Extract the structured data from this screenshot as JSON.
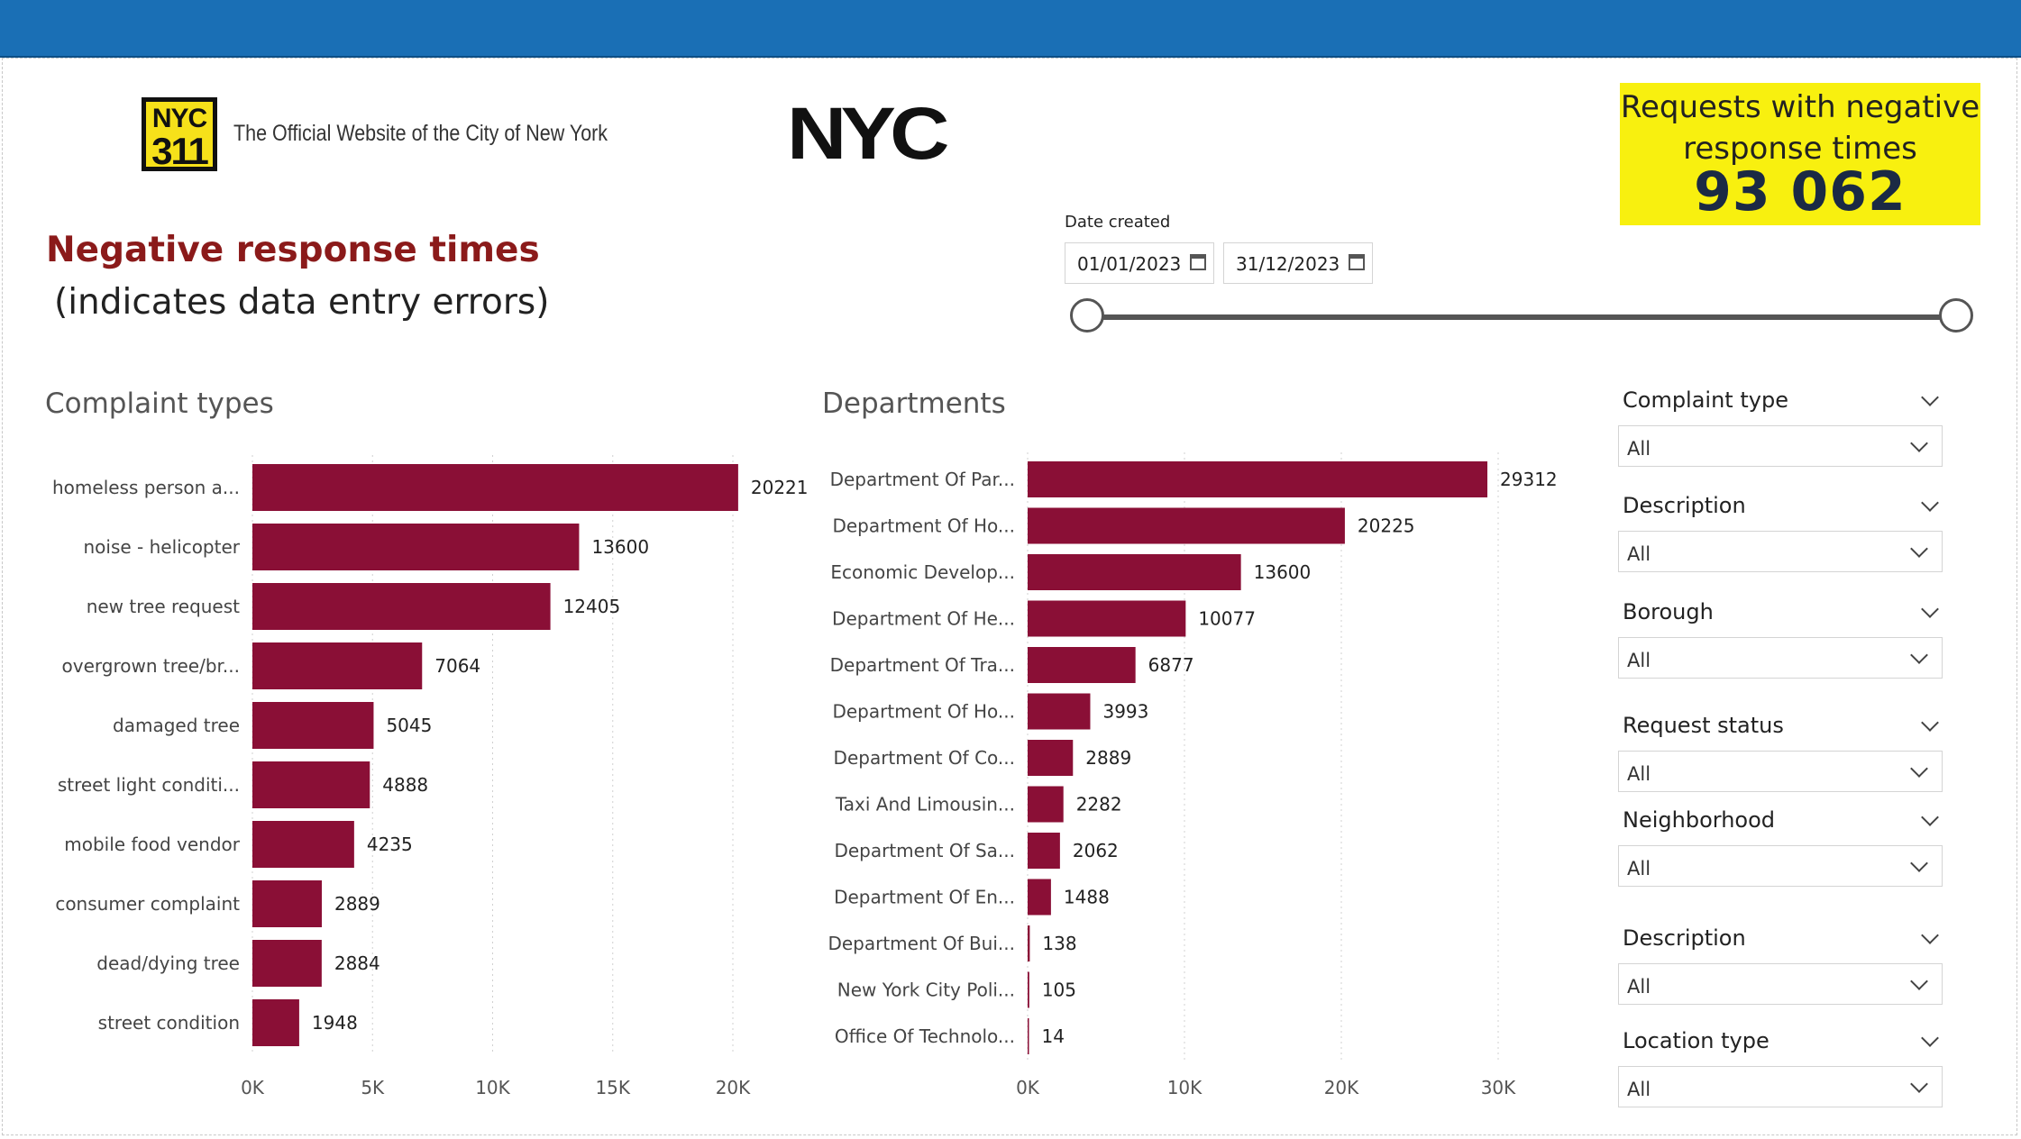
{
  "header": {
    "logo311_top": "NYC",
    "logo311_bottom": "311",
    "site_text": "The Official Website of the City of New York",
    "nyc_logo": "NYC"
  },
  "kpi": {
    "label": "Requests with negative response times",
    "value": "93 062",
    "background": "#f8f00f"
  },
  "title": "Negative response times",
  "subtitle": "(indicates data entry errors)",
  "date_filter": {
    "label": "Date created",
    "start": "01/01/2023",
    "end": "31/12/2023"
  },
  "sections": {
    "complaints": "Complaint types",
    "departments": "Departments"
  },
  "filters": [
    {
      "title": "Complaint type",
      "value": "All"
    },
    {
      "title": "Description",
      "value": "All"
    },
    {
      "title": "Borough",
      "value": "All"
    },
    {
      "title": "Request status",
      "value": "All"
    },
    {
      "title": "Neighborhood",
      "value": "All"
    },
    {
      "title": "Description",
      "value": "All"
    },
    {
      "title": "Location type",
      "value": "All"
    }
  ],
  "chart_data": [
    {
      "type": "bar",
      "orientation": "horizontal",
      "title": "Complaint types",
      "color": "#8a0f36",
      "categories": [
        "homeless person a...",
        "noise - helicopter",
        "new tree request",
        "overgrown tree/br...",
        "damaged tree",
        "street light conditi...",
        "mobile food vendor",
        "consumer complaint",
        "dead/dying tree",
        "street condition"
      ],
      "values": [
        20221,
        13600,
        12405,
        7064,
        5045,
        4888,
        4235,
        2889,
        2884,
        1948
      ],
      "xlim": [
        0,
        20000
      ],
      "xticks": [
        "0K",
        "5K",
        "10K",
        "15K",
        "20K"
      ],
      "xtick_values": [
        0,
        5000,
        10000,
        15000,
        20000
      ],
      "grid": true
    },
    {
      "type": "bar",
      "orientation": "horizontal",
      "title": "Departments",
      "color": "#8a0f36",
      "categories": [
        "Department Of Par...",
        "Department Of Ho...",
        "Economic Develop...",
        "Department Of He...",
        "Department Of Tra...",
        "Department Of Ho...",
        "Department Of Co...",
        "Taxi And Limousin...",
        "Department Of Sa...",
        "Department Of En...",
        "Department Of Bui...",
        "New York City Poli...",
        "Office Of Technolo..."
      ],
      "values": [
        29312,
        20225,
        13600,
        10077,
        6877,
        3993,
        2889,
        2282,
        2062,
        1488,
        138,
        105,
        14
      ],
      "xlim": [
        0,
        30000
      ],
      "xticks": [
        "0K",
        "10K",
        "20K",
        "30K"
      ],
      "xtick_values": [
        0,
        10000,
        20000,
        30000
      ],
      "grid": true
    }
  ]
}
